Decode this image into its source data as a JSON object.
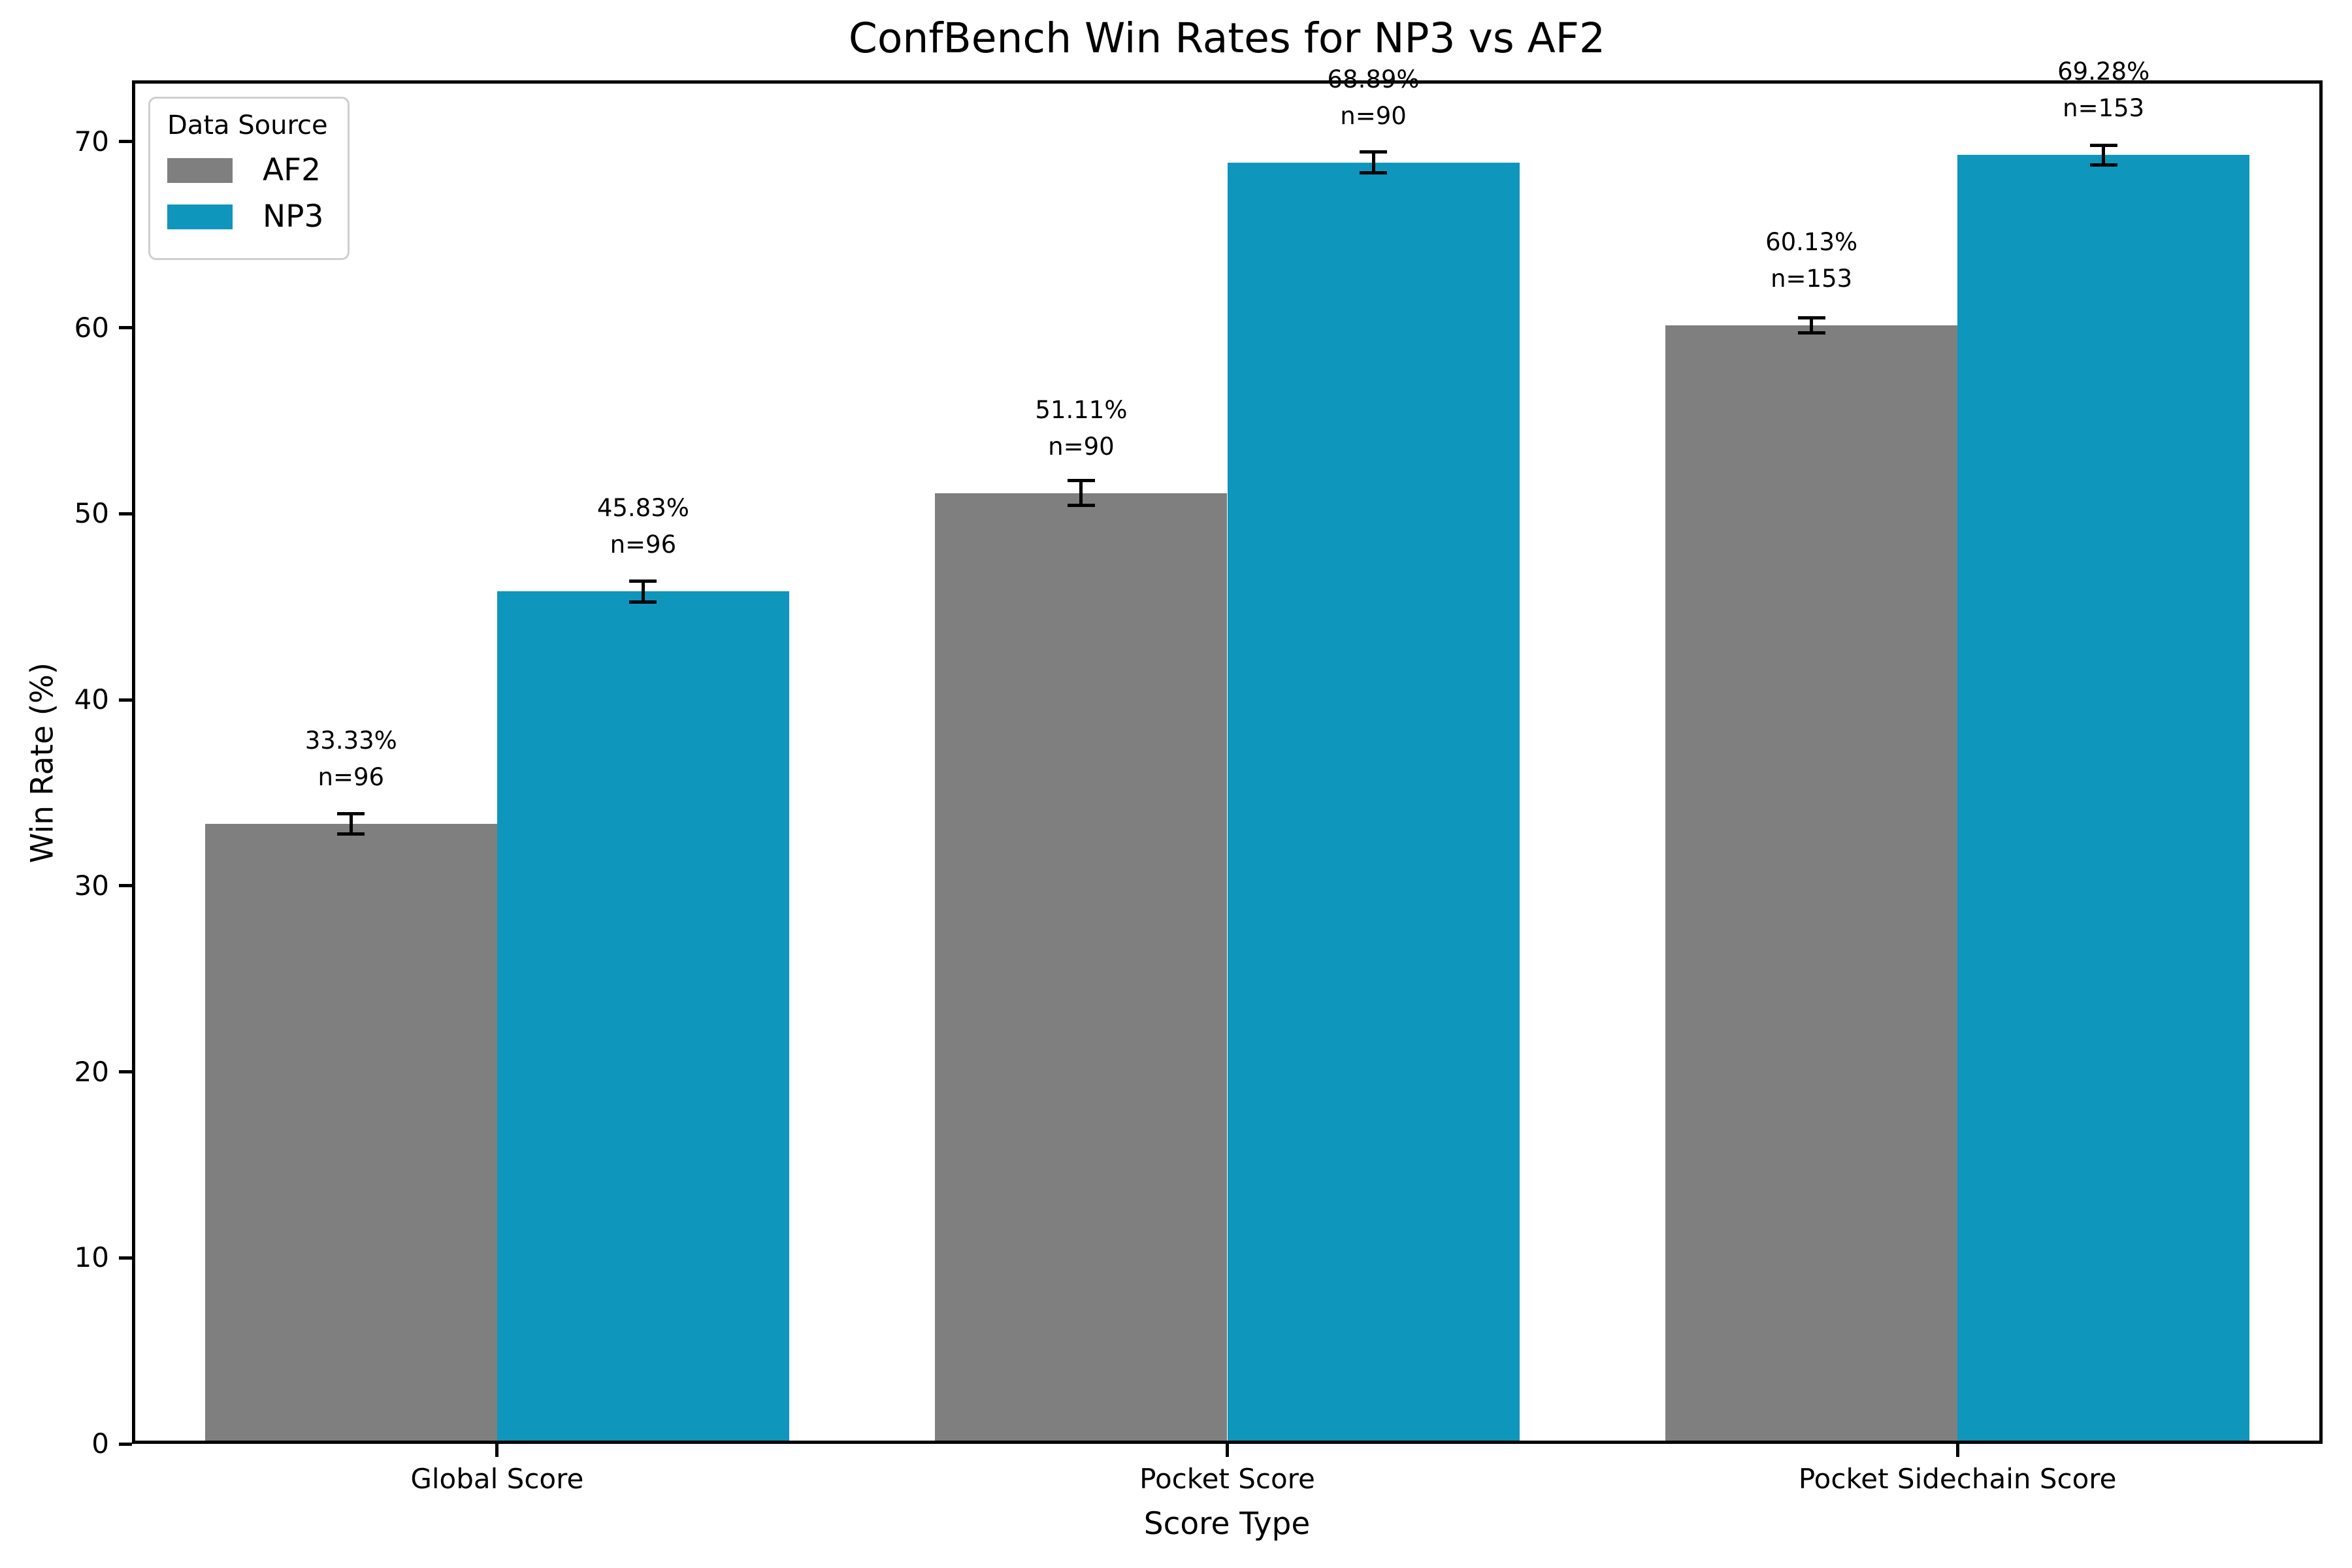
{
  "chart_data": {
    "type": "bar",
    "title": "ConfBench Win Rates for NP3 vs AF2",
    "xlabel": "Score Type",
    "ylabel": "Win Rate (%)",
    "categories": [
      "Global Score",
      "Pocket Score",
      "Pocket Sidechain Score"
    ],
    "series": [
      {
        "name": "AF2",
        "color": "#7f7f7f",
        "values": [
          33.33,
          51.11,
          60.13
        ],
        "errors": [
          0.56,
          0.67,
          0.39
        ],
        "bar_labels": [
          "33.33%",
          "51.11%",
          "60.13%"
        ],
        "n_labels": [
          "n=96",
          "n=90",
          "n=153"
        ]
      },
      {
        "name": "NP3",
        "color": "#0e96bc",
        "values": [
          45.83,
          68.89,
          69.28
        ],
        "errors": [
          0.56,
          0.56,
          0.53
        ],
        "bar_labels": [
          "45.83%",
          "68.89%",
          "69.28%"
        ],
        "n_labels": [
          "n=96",
          "n=90",
          "n=153"
        ]
      }
    ],
    "ylim": [
      0,
      73.3
    ],
    "yticks": [
      0,
      10,
      20,
      30,
      40,
      50,
      60,
      70
    ],
    "ytick_labels": [
      "0",
      "10",
      "20",
      "30",
      "40",
      "50",
      "60",
      "70"
    ],
    "legend": {
      "title": "Data Source",
      "position": "upper left"
    },
    "grid": false,
    "error_bar_color": "#000000"
  }
}
